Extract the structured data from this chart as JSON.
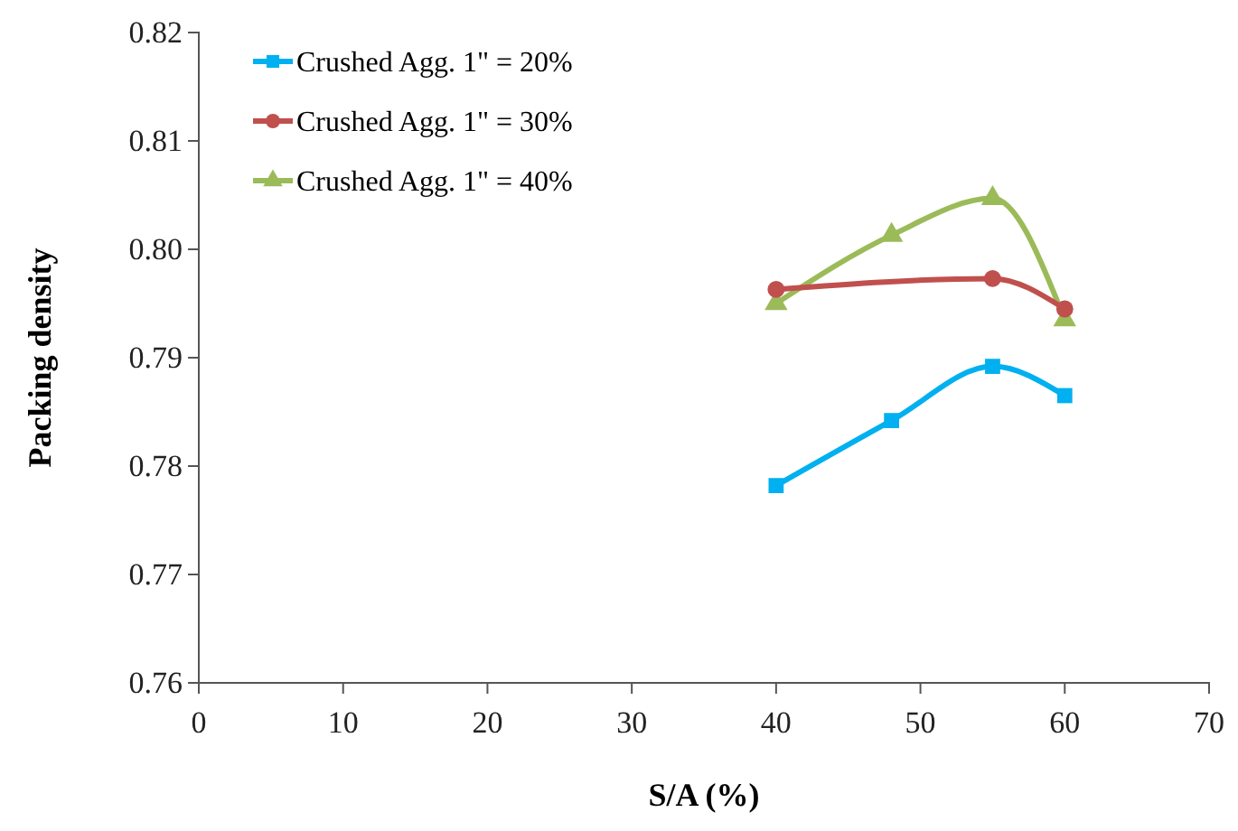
{
  "chart_data": {
    "type": "line",
    "xlabel": "S/A (%)",
    "ylabel": "Packing density",
    "xlim": [
      0,
      70
    ],
    "xticks": [
      0,
      10,
      20,
      30,
      40,
      50,
      60,
      70
    ],
    "ylim": [
      0.76,
      0.82
    ],
    "yticks": [
      {
        "value": 0.76,
        "label": "0.76"
      },
      {
        "value": 0.77,
        "label": "0.77"
      },
      {
        "value": 0.78,
        "label": "0.78"
      },
      {
        "value": 0.79,
        "label": "0.79"
      },
      {
        "value": 0.8,
        "label": "0.80"
      },
      {
        "value": 0.81,
        "label": "0.81"
      },
      {
        "value": 0.82,
        "label": "0.82"
      }
    ],
    "legend": "top left",
    "grid": false,
    "series": [
      {
        "name": "Crushed Agg. 1\" = 20%",
        "color": "#00b0f0",
        "marker": "square",
        "x": [
          40,
          48,
          55,
          60
        ],
        "values": [
          0.7782,
          0.7842,
          0.7892,
          0.7865
        ]
      },
      {
        "name": "Crushed Agg. 1\" = 30%",
        "color": "#c0504d",
        "marker": "circle",
        "x": [
          40,
          55,
          60
        ],
        "values": [
          0.7963,
          0.7973,
          0.7945
        ]
      },
      {
        "name": "Crushed Agg. 1\" = 40%",
        "color": "#9bbb59",
        "marker": "triangle",
        "x": [
          40,
          48,
          55,
          60
        ],
        "values": [
          0.795,
          0.8013,
          0.8047,
          0.7935
        ]
      }
    ]
  }
}
